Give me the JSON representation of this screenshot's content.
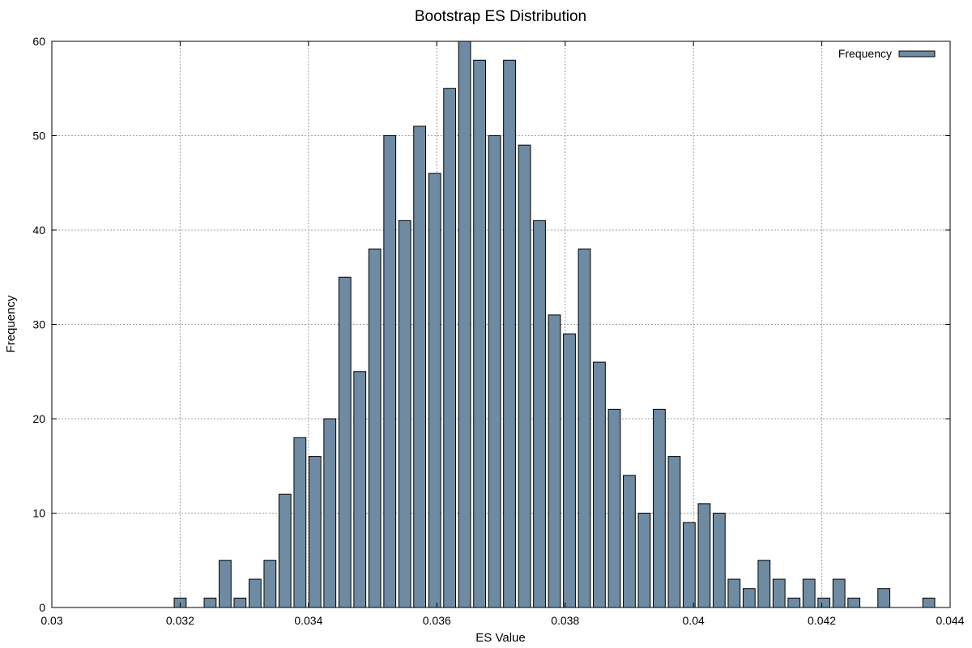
{
  "chart_data": {
    "type": "bar",
    "title": "Bootstrap ES Distribution",
    "xlabel": "ES Value",
    "ylabel": "Frequency",
    "xlim": [
      0.03,
      0.044
    ],
    "ylim": [
      0,
      60
    ],
    "x_ticks": [
      "0.03",
      "0.032",
      "0.034",
      "0.036",
      "0.038",
      "0.04",
      "0.042",
      "0.044"
    ],
    "y_ticks": [
      "0",
      "10",
      "20",
      "30",
      "40",
      "50",
      "60"
    ],
    "grid": true,
    "legend_position": "top-right",
    "bar_color": "#6e8ba3",
    "bin_width": 0.000233,
    "series": [
      {
        "name": "Frequency",
        "x": [
          0.032,
          0.032467,
          0.0327,
          0.032933,
          0.033167,
          0.0334,
          0.033633,
          0.033867,
          0.0341,
          0.034333,
          0.034567,
          0.0348,
          0.035033,
          0.035267,
          0.0355,
          0.035733,
          0.035967,
          0.0362,
          0.036433,
          0.036667,
          0.0369,
          0.037133,
          0.037367,
          0.0376,
          0.037833,
          0.038067,
          0.0383,
          0.038533,
          0.038767,
          0.039,
          0.039233,
          0.039467,
          0.0397,
          0.039933,
          0.040167,
          0.0404,
          0.040633,
          0.040867,
          0.0411,
          0.041333,
          0.041567,
          0.0418,
          0.042033,
          0.042267,
          0.0425,
          0.042967,
          0.043667
        ],
        "values": [
          1,
          1,
          5,
          1,
          3,
          5,
          12,
          18,
          16,
          20,
          35,
          25,
          38,
          50,
          41,
          51,
          46,
          55,
          60,
          58,
          50,
          58,
          49,
          41,
          31,
          29,
          38,
          26,
          21,
          14,
          10,
          21,
          16,
          9,
          11,
          10,
          3,
          2,
          5,
          3,
          1,
          3,
          1,
          3,
          1,
          2,
          1
        ]
      }
    ]
  }
}
